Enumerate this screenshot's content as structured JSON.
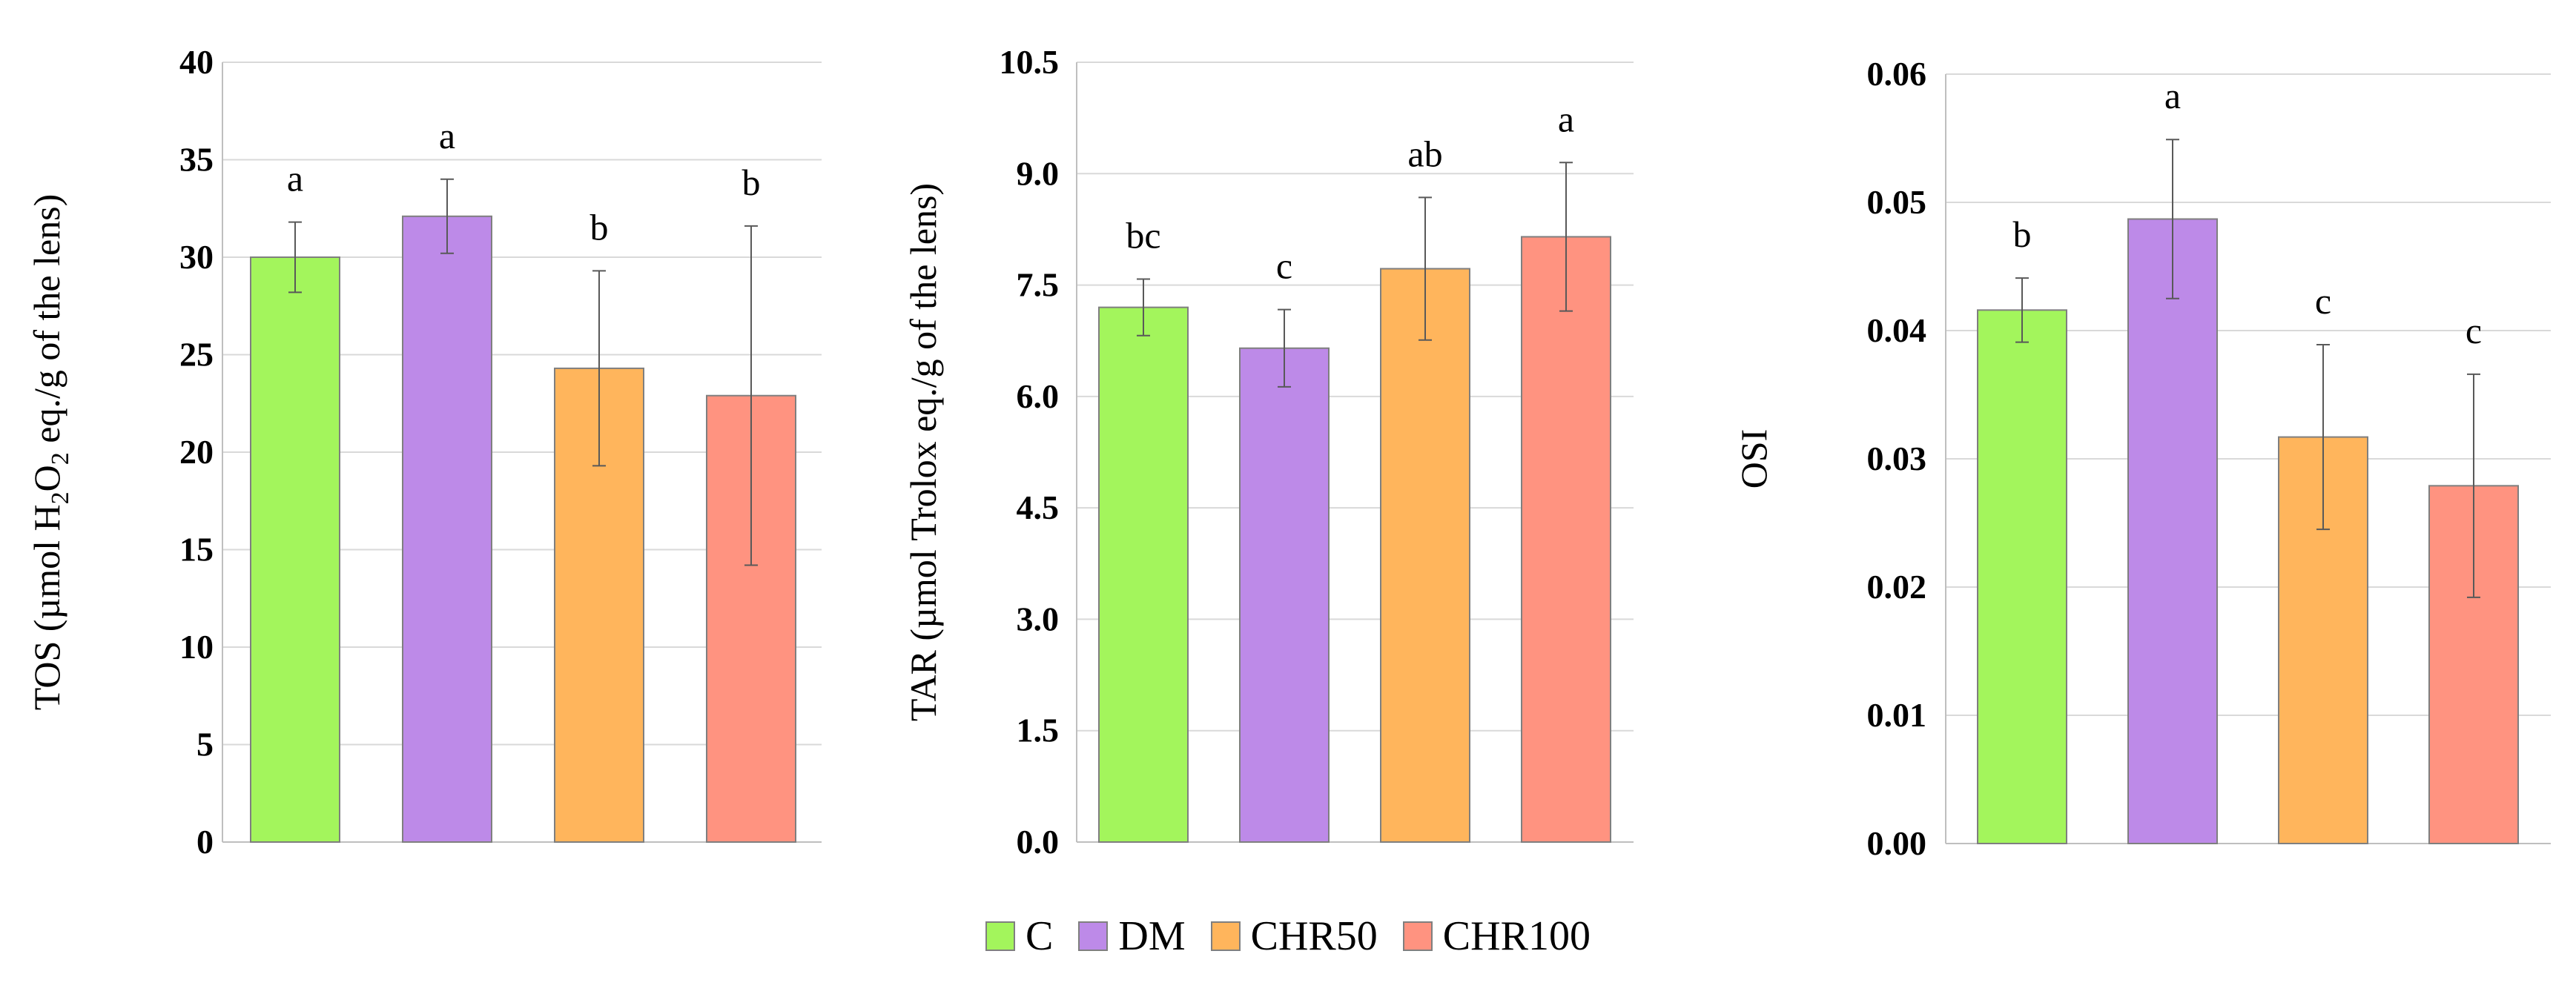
{
  "legend": [
    {
      "name": "C",
      "color": "#a3f55c"
    },
    {
      "name": "DM",
      "color": "#bd8ae8"
    },
    {
      "name": "CHR50",
      "color": "#ffb55c"
    },
    {
      "name": "CHR100",
      "color": "#ff9380"
    }
  ],
  "chart_data": [
    {
      "type": "bar",
      "ylabel_parts": [
        "TOS (µmol H",
        "2",
        "O",
        "2",
        " eq./g of the lens)"
      ],
      "categories": [
        "C",
        "DM",
        "CHR50",
        "CHR100"
      ],
      "values": [
        30.0,
        32.1,
        24.3,
        22.9
      ],
      "errors": [
        1.8,
        1.9,
        5.0,
        8.7
      ],
      "sig_labels": [
        "a",
        "a",
        "b",
        "b"
      ],
      "ylim": [
        0,
        40
      ],
      "yticks": [
        0,
        5,
        10,
        15,
        20,
        25,
        30,
        35,
        40
      ],
      "ytick_labels": [
        "0",
        "5",
        "10",
        "15",
        "20",
        "25",
        "30",
        "35",
        "40"
      ],
      "grid": true
    },
    {
      "type": "bar",
      "ylabel_parts": [
        "TAR (µmol Trolox eq./g of the lens)"
      ],
      "categories": [
        "C",
        "DM",
        "CHR50",
        "CHR100"
      ],
      "values": [
        7.2,
        6.65,
        7.72,
        8.15
      ],
      "errors": [
        0.38,
        0.52,
        0.96,
        1.0
      ],
      "sig_labels": [
        "bc",
        "c",
        "ab",
        "a"
      ],
      "ylim": [
        0,
        10.5
      ],
      "yticks": [
        0,
        1.5,
        3,
        4.5,
        6,
        7.5,
        9,
        10.5
      ],
      "ytick_labels": [
        "0.0",
        "1.5",
        "3.0",
        "4.5",
        "6.0",
        "7.5",
        "9.0",
        "10.5"
      ],
      "grid": true
    },
    {
      "type": "bar",
      "ylabel_parts": [
        "OSI"
      ],
      "categories": [
        "C",
        "DM",
        "CHR50",
        "CHR100"
      ],
      "values": [
        0.0416,
        0.0487,
        0.0317,
        0.0279
      ],
      "errors": [
        0.0025,
        0.0062,
        0.0072,
        0.0087
      ],
      "sig_labels": [
        "b",
        "a",
        "c",
        "c"
      ],
      "ylim": [
        0,
        0.06
      ],
      "yticks": [
        0,
        0.01,
        0.02,
        0.03,
        0.04,
        0.05,
        0.06
      ],
      "ytick_labels": [
        "0.00",
        "0.01",
        "0.02",
        "0.03",
        "0.04",
        "0.05",
        "0.06"
      ],
      "grid": true
    }
  ]
}
